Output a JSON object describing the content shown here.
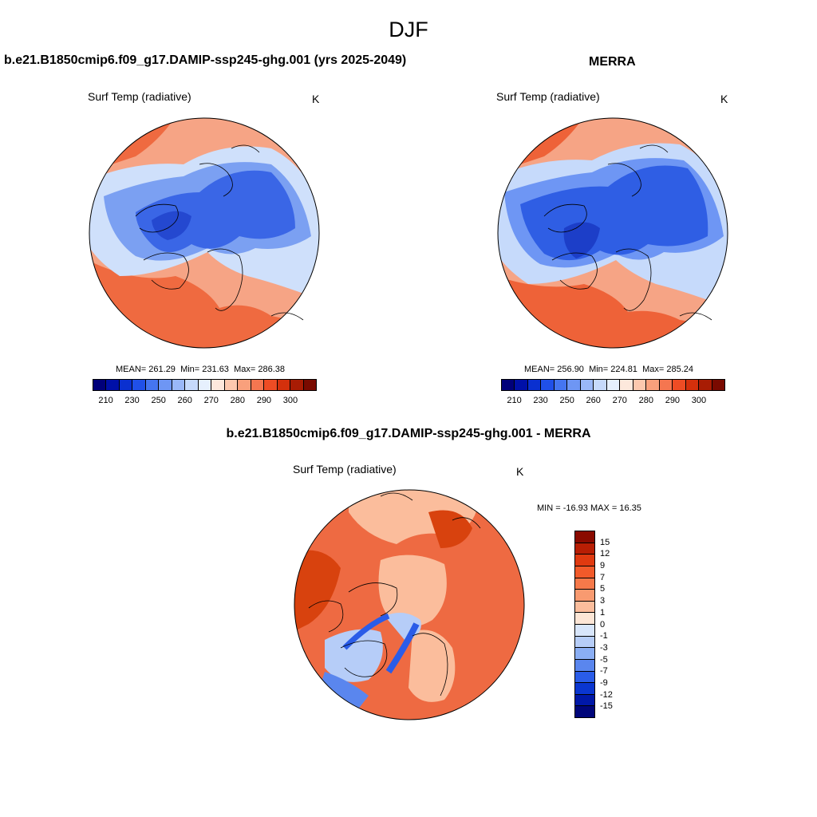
{
  "figure": {
    "title": "DJF"
  },
  "panels": [
    {
      "title": "b.e21.B1850cmip6.f09_g17.DAMIP-ssp245-ghg.001 (yrs 2025-2049)",
      "variable": "Surf Temp (radiative)",
      "units": "K",
      "stats": {
        "mean_label": "MEAN=",
        "mean": "261.29",
        "min_label": "Min=",
        "min": "231.63",
        "max_label": "Max=",
        "max": "286.38"
      },
      "colorbar": {
        "ticks": [
          "210",
          "230",
          "250",
          "260",
          "270",
          "280",
          "290",
          "300"
        ],
        "colors": [
          "#00007a",
          "#0010a8",
          "#0a30d0",
          "#2050e8",
          "#4575f0",
          "#6e96f4",
          "#9ab8f8",
          "#c6dafb",
          "#e6f0fd",
          "#fde8dc",
          "#fcc8ae",
          "#f9a07c",
          "#f57650",
          "#ee4c24",
          "#d4300c",
          "#a81c04",
          "#7a0a00"
        ]
      },
      "map_colors": {
        "cold": "#3a66e6",
        "cool": "#7ba0f2",
        "pale": "#cfe0fb",
        "warm": "#f6a485",
        "hot": "#ef6a40"
      }
    },
    {
      "title": "MERRA",
      "variable": "Surf Temp (radiative)",
      "units": "K",
      "stats": {
        "mean_label": "MEAN=",
        "mean": "256.90",
        "min_label": "Min=",
        "min": "224.81",
        "max_label": "Max=",
        "max": "285.24"
      },
      "colorbar": {
        "ticks": [
          "210",
          "230",
          "250",
          "260",
          "270",
          "280",
          "290",
          "300"
        ],
        "colors": [
          "#00007a",
          "#0010a8",
          "#0a30d0",
          "#2050e8",
          "#4575f0",
          "#6e96f4",
          "#9ab8f8",
          "#c6dafb",
          "#e6f0fd",
          "#fde8dc",
          "#fcc8ae",
          "#f9a07c",
          "#f57650",
          "#ee4c24",
          "#d4300c",
          "#a81c04",
          "#7a0a00"
        ]
      },
      "map_colors": {
        "cold": "#2f5ee4",
        "cool": "#6e96f4",
        "pale": "#c6dafb",
        "warm": "#f6a485",
        "hot": "#ee6238"
      }
    },
    {
      "title": "b.e21.B1850cmip6.f09_g17.DAMIP-ssp245-ghg.001 - MERRA",
      "variable": "Surf Temp (radiative)",
      "units": "K",
      "stats": {
        "min_label": "MIN =",
        "min": "-16.93",
        "max_label": "MAX =",
        "max": "16.35"
      },
      "colorbar": {
        "ticks": [
          "15",
          "12",
          "9",
          "7",
          "5",
          "3",
          "1",
          "0",
          "-1",
          "-3",
          "-5",
          "-7",
          "-9",
          "-12",
          "-15"
        ],
        "colors": [
          "#8a0a00",
          "#b81e04",
          "#e03a10",
          "#f25a2a",
          "#f6794a",
          "#f89a70",
          "#fbbd9c",
          "#fde6d6",
          "#d8e6fb",
          "#b6cdf8",
          "#8aaef4",
          "#5a86ee",
          "#2a5ce8",
          "#0a36d0",
          "#0018a8",
          "#00067a"
        ]
      },
      "map_colors": {
        "base": "#ee6a42",
        "light": "#fbbd9c",
        "dark": "#d8420e",
        "blue": "#2a5ce8",
        "paleblue": "#b6cdf8"
      }
    }
  ]
}
